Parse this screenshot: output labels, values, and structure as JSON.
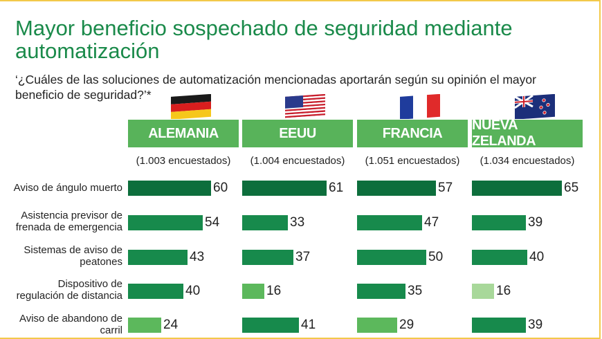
{
  "title": "Mayor beneficio sospechado de seguridad mediante automatización",
  "subtitle": "‘¿Cuáles de las soluciones de automatización mencionadas aportarán según su opinión el mayor beneficio de seguridad?’*",
  "colors": {
    "title": "#1a8a4a",
    "header_bg": "#58b35a",
    "bar_dark": "#0d6e3c",
    "bar_mid": "#178a4c",
    "bar_light": "#5cb85c",
    "bar_pale": "#a8d89a",
    "frame": "#f3c94a"
  },
  "countries": [
    {
      "name": "ALEMANIA",
      "respondents": "(1.003 encuestados)",
      "flag": "germany-flag"
    },
    {
      "name": "EEUU",
      "respondents": "(1.004 encuestados)",
      "flag": "usa-flag"
    },
    {
      "name": "FRANCIA",
      "respondents": "(1.051 encuestados)",
      "flag": "france-flag"
    },
    {
      "name": "NUEVA ZELANDA",
      "respondents": "(1.034 encuestados)",
      "flag": "new-zealand-flag"
    }
  ],
  "chart_data": {
    "type": "bar",
    "categories": [
      "Aviso de ángulo muerto",
      "Asistencia previsor de frenada de emergencia",
      "Sistemas de aviso de peatones",
      "Dispositivo de regulación de distancia",
      "Aviso de abandono de carril"
    ],
    "series": [
      {
        "name": "ALEMANIA",
        "values": [
          60,
          54,
          43,
          40,
          24
        ]
      },
      {
        "name": "EEUU",
        "values": [
          61,
          33,
          37,
          16,
          41
        ]
      },
      {
        "name": "FRANCIA",
        "values": [
          57,
          47,
          50,
          35,
          29
        ]
      },
      {
        "name": "NUEVA ZELANDA",
        "values": [
          65,
          39,
          40,
          16,
          39
        ]
      }
    ],
    "bar_shades": [
      [
        "dark",
        "mid",
        "mid",
        "mid",
        "light"
      ],
      [
        "dark",
        "mid",
        "mid",
        "light",
        "mid"
      ],
      [
        "dark",
        "mid",
        "mid",
        "mid",
        "light"
      ],
      [
        "dark",
        "mid",
        "mid",
        "pale",
        "mid"
      ]
    ],
    "xlim": [
      0,
      65
    ]
  }
}
